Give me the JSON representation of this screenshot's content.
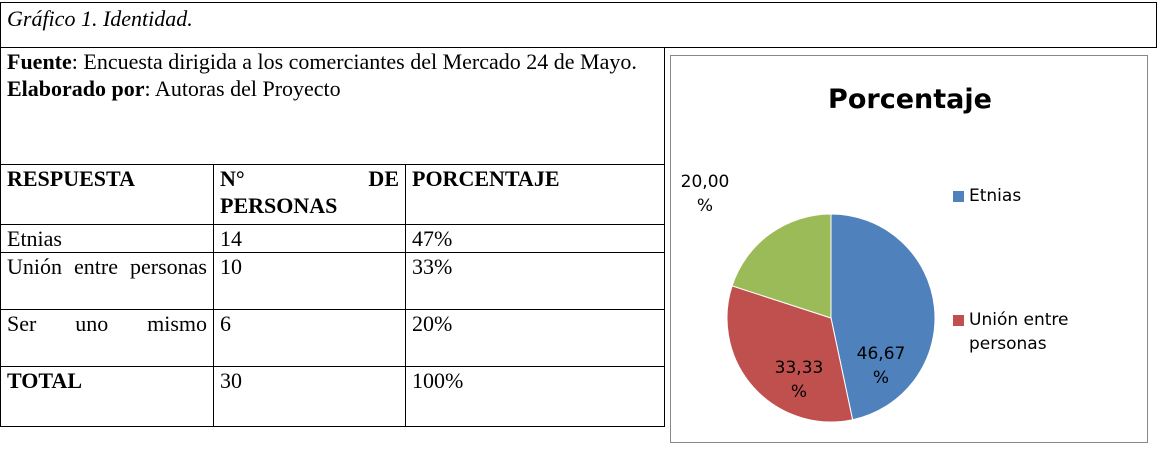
{
  "caption": "Gráfico 1. Identidad.",
  "source": {
    "label": "Fuente",
    "text": ": Encuesta dirigida a los comerciantes del Mercado 24 de Mayo."
  },
  "author": {
    "label": "Elaborado por",
    "text": ": Autoras del Proyecto"
  },
  "table": {
    "header": [
      "RESPUESTA",
      "N° DE PERSONAS",
      "PORCENTAJE"
    ],
    "rows": [
      [
        "Etnias",
        "14",
        "47%"
      ],
      [
        "Unión entre personas",
        "10",
        "33%"
      ],
      [
        "Ser uno mismo",
        "6",
        "20%"
      ],
      [
        "TOTAL",
        "30",
        "100%"
      ]
    ]
  },
  "chart_data": {
    "type": "pie",
    "title": "Porcentaje",
    "categories": [
      "Etnias",
      "Unión entre personas",
      null
    ],
    "values": [
      46.67,
      33.33,
      20.0
    ],
    "value_labels": [
      "46,67 %",
      "33,33 %",
      "20,00 %"
    ],
    "colors": [
      "#4f81bd",
      "#c0504d",
      "#9bbb59"
    ]
  }
}
